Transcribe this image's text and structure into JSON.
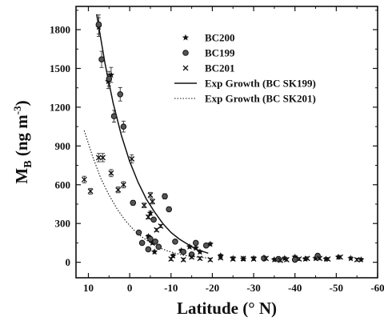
{
  "chart_data": {
    "type": "scatter",
    "xlabel": "Latitude (° N)",
    "ylabel_main": "M",
    "ylabel_sub": "B",
    "ylabel_units": " (ng m",
    "ylabel_sup": "-3",
    "ylabel_close": ")",
    "xlim": [
      13,
      -60
    ],
    "ylim": [
      -120,
      1980
    ],
    "x_ticks": [
      10,
      0,
      -10,
      -20,
      -30,
      -40,
      -50,
      -60
    ],
    "y_ticks": [
      0,
      300,
      600,
      900,
      1200,
      1500,
      1800
    ],
    "grid": false,
    "legend_position": "top-right",
    "series": [
      {
        "name": "BC200",
        "marker": "star",
        "points": [
          [
            7.5,
            1820
          ],
          [
            5.2,
            1400
          ],
          [
            4.5,
            1450
          ],
          [
            -4.5,
            200
          ],
          [
            -5.0,
            380
          ],
          [
            -5.5,
            150
          ],
          [
            -6.0,
            80
          ],
          [
            -10.5,
            50
          ],
          [
            -12.5,
            90
          ],
          [
            -14.5,
            120
          ],
          [
            -16.0,
            110
          ],
          [
            -17.0,
            80
          ],
          [
            -19.5,
            140
          ],
          [
            -22.0,
            50
          ],
          [
            -25.0,
            30
          ],
          [
            -27.5,
            25
          ],
          [
            -30.0,
            30
          ],
          [
            -32.5,
            35
          ],
          [
            -35.0,
            20
          ],
          [
            -37.5,
            30
          ],
          [
            -40.0,
            40
          ],
          [
            -42.5,
            25
          ],
          [
            -45.0,
            30
          ],
          [
            -47.5,
            25
          ],
          [
            -50.5,
            40
          ],
          [
            -53.5,
            30
          ],
          [
            -56.0,
            20
          ]
        ]
      },
      {
        "name": "BC199",
        "marker": "circle",
        "points": [
          [
            7.5,
            1840
          ],
          [
            6.8,
            1570
          ],
          [
            5.0,
            1420
          ],
          [
            3.8,
            1130
          ],
          [
            2.3,
            1300
          ],
          [
            1.5,
            1050
          ],
          [
            -0.8,
            460
          ],
          [
            -2.2,
            230
          ],
          [
            -3.0,
            150
          ],
          [
            -4.5,
            100
          ],
          [
            -5.0,
            180
          ],
          [
            -5.8,
            330
          ],
          [
            -6.2,
            160
          ],
          [
            -7.0,
            120
          ],
          [
            -8.5,
            510
          ],
          [
            -9.5,
            410
          ],
          [
            -11.0,
            160
          ],
          [
            -13.0,
            80
          ],
          [
            -15.0,
            60
          ],
          [
            -16.0,
            150
          ],
          [
            -18.5,
            130
          ],
          [
            -32.5,
            30
          ],
          [
            -36.0,
            25
          ],
          [
            -40.0,
            20
          ],
          [
            -45.5,
            50
          ]
        ]
      },
      {
        "name": "BC201",
        "marker": "x",
        "points": [
          [
            11.0,
            640
          ],
          [
            9.5,
            550
          ],
          [
            7.5,
            810
          ],
          [
            6.5,
            810
          ],
          [
            4.5,
            690
          ],
          [
            2.8,
            560
          ],
          [
            1.5,
            600
          ],
          [
            -0.5,
            800
          ],
          [
            -3.5,
            440
          ],
          [
            -4.5,
            350
          ],
          [
            -5.0,
            520
          ],
          [
            -5.5,
            470
          ],
          [
            -6.5,
            250
          ],
          [
            -7.5,
            280
          ],
          [
            -10.0,
            25
          ],
          [
            -13.0,
            20
          ],
          [
            -15.0,
            40
          ],
          [
            -17.0,
            30
          ],
          [
            -19.5,
            20
          ],
          [
            -22.0,
            35
          ],
          [
            -25.0,
            25
          ],
          [
            -27.5,
            30
          ],
          [
            -30.0,
            25
          ],
          [
            -33.0,
            30
          ],
          [
            -36.5,
            15
          ],
          [
            -38.0,
            20
          ],
          [
            -41.0,
            25
          ],
          [
            -43.0,
            30
          ],
          [
            -46.0,
            30
          ],
          [
            -48.0,
            25
          ],
          [
            -51.0,
            40
          ],
          [
            -55.0,
            20
          ]
        ]
      },
      {
        "name": "Exp Growth (BC SK199)",
        "style": "solid",
        "points": [
          [
            8.0,
            1920
          ],
          [
            6.0,
            1540
          ],
          [
            4.0,
            1230
          ],
          [
            2.0,
            980
          ],
          [
            0.0,
            780
          ],
          [
            -2.0,
            620
          ],
          [
            -4.0,
            490
          ],
          [
            -6.0,
            390
          ],
          [
            -8.0,
            300
          ],
          [
            -10.0,
            230
          ],
          [
            -12.0,
            180
          ],
          [
            -14.0,
            140
          ],
          [
            -16.0,
            100
          ],
          [
            -18.0,
            80
          ],
          [
            -19.0,
            70
          ]
        ]
      },
      {
        "name": "Exp Growth (BC SK201)",
        "style": "dotted",
        "points": [
          [
            11.0,
            1020
          ],
          [
            9.0,
            820
          ],
          [
            7.0,
            650
          ],
          [
            5.0,
            520
          ],
          [
            3.0,
            410
          ],
          [
            1.0,
            320
          ],
          [
            -1.0,
            250
          ],
          [
            -3.0,
            195
          ],
          [
            -5.0,
            150
          ],
          [
            -7.0,
            115
          ],
          [
            -9.0,
            90
          ],
          [
            -11.0,
            70
          ],
          [
            -13.0,
            55
          ],
          [
            -15.0,
            45
          ],
          [
            -17.0,
            38
          ],
          [
            -19.0,
            33
          ]
        ]
      }
    ]
  },
  "colors": {
    "foreground": "#111111",
    "background": "#ffffff"
  }
}
